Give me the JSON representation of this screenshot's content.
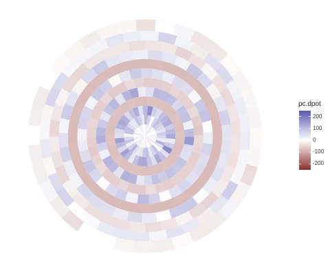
{
  "chart_data": {
    "type": "heatmap",
    "projection": "polar",
    "title": "",
    "legend": {
      "title": "pc.dpot",
      "placement": "right",
      "breaks": [
        200,
        100,
        0,
        -100,
        -200
      ],
      "break_labels": [
        "200",
        "100",
        "0",
        "-100",
        "-200"
      ],
      "limits": [
        -250,
        250
      ],
      "colors": {
        "low": "#8b2e2b",
        "mid": "#ffffff",
        "high": "#5a58b0"
      }
    },
    "rings": [
      {
        "r": [
          0.0,
          0.1
        ],
        "value": 10
      },
      {
        "r": [
          0.1,
          0.18
        ],
        "value": 90
      },
      {
        "r": [
          0.18,
          0.26
        ],
        "value": 140
      },
      {
        "r": [
          0.26,
          0.34
        ],
        "value": -110
      },
      {
        "r": [
          0.34,
          0.42
        ],
        "value": 120
      },
      {
        "r": [
          0.42,
          0.5
        ],
        "value": -80
      },
      {
        "r": [
          0.5,
          0.58
        ],
        "value": 70
      },
      {
        "r": [
          0.58,
          0.66
        ],
        "value": -120
      },
      {
        "r": [
          0.66,
          0.74
        ],
        "value": 60
      },
      {
        "r": [
          0.74,
          0.82
        ],
        "value": -50
      },
      {
        "r": [
          0.82,
          0.9
        ],
        "value": 40
      },
      {
        "r": [
          0.9,
          1.0
        ],
        "value": -20
      }
    ]
  }
}
